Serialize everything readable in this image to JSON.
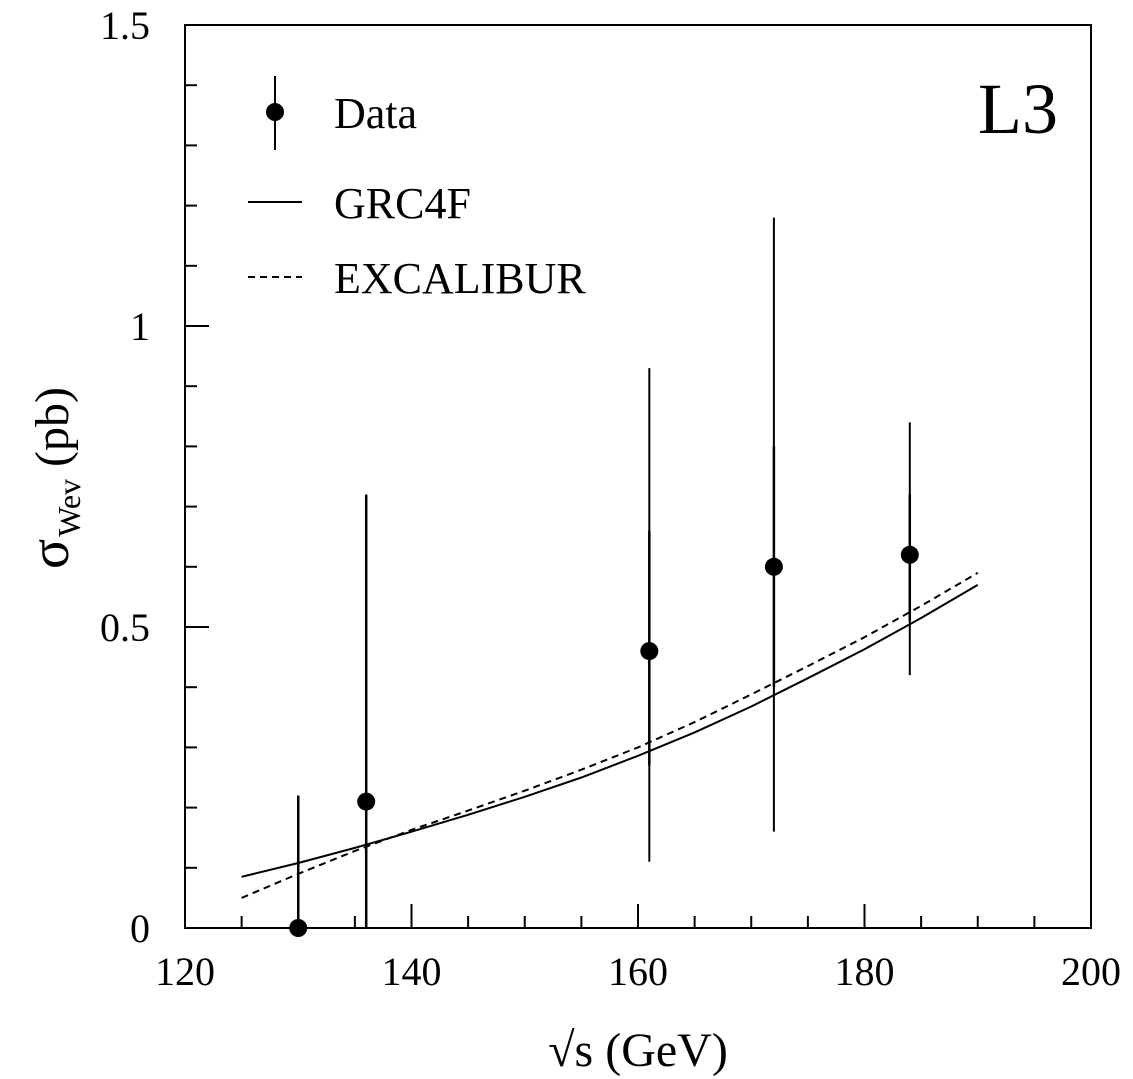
{
  "chart_data": {
    "type": "scatter",
    "experiment_label": "L3",
    "xlabel": "√s (GeV)",
    "ylabel": {
      "symbol": "σ",
      "subscript": "Wev",
      "unit": "(pb)"
    },
    "xlim": [
      120,
      200
    ],
    "ylim": [
      0,
      1.5
    ],
    "x_ticks": [
      120,
      140,
      160,
      180,
      200
    ],
    "x_tick_labels": [
      "120",
      "140",
      "160",
      "180",
      "200"
    ],
    "y_ticks": [
      0,
      0.5,
      1,
      1.5
    ],
    "y_tick_labels": [
      "0",
      "0.5",
      "1",
      "1.5"
    ],
    "x_minor_step": 5,
    "y_minor_step": 0.1,
    "grid": false,
    "legend_position": "top-left",
    "legend": [
      {
        "label": "Data",
        "style": "marker-errorbar"
      },
      {
        "label": "GRC4F",
        "style": "solid"
      },
      {
        "label": "EXCALIBUR",
        "style": "dashed"
      }
    ],
    "data_points": [
      {
        "x": 130,
        "y": 0.0,
        "y_low": 0.0,
        "y_high": 0.22,
        "stat_low": 0.0,
        "stat_high": 0.22
      },
      {
        "x": 136,
        "y": 0.21,
        "y_low": 0.0,
        "y_high": 0.72,
        "stat_low": 0.0,
        "stat_high": 0.72
      },
      {
        "x": 161,
        "y": 0.46,
        "y_low": 0.11,
        "y_high": 0.93,
        "stat_low": 0.27,
        "stat_high": 0.66
      },
      {
        "x": 172,
        "y": 0.6,
        "y_low": 0.16,
        "y_high": 1.18,
        "stat_low": 0.4,
        "stat_high": 0.8
      },
      {
        "x": 184,
        "y": 0.62,
        "y_low": 0.42,
        "y_high": 0.84,
        "stat_low": 0.51,
        "stat_high": 0.72
      }
    ],
    "curves": [
      {
        "name": "GRC4F",
        "style": "solid",
        "x": [
          125,
          130,
          135,
          140,
          145,
          150,
          155,
          160,
          165,
          170,
          175,
          180,
          185,
          190
        ],
        "y": [
          0.085,
          0.108,
          0.133,
          0.16,
          0.188,
          0.218,
          0.25,
          0.286,
          0.325,
          0.368,
          0.415,
          0.463,
          0.515,
          0.57
        ]
      },
      {
        "name": "EXCALIBUR",
        "style": "dashed",
        "x": [
          125,
          130,
          135,
          140,
          145,
          150,
          155,
          160,
          165,
          170,
          175,
          180,
          185,
          190
        ],
        "y": [
          0.05,
          0.09,
          0.128,
          0.163,
          0.195,
          0.228,
          0.263,
          0.3,
          0.342,
          0.388,
          0.435,
          0.483,
          0.535,
          0.59
        ]
      }
    ]
  }
}
